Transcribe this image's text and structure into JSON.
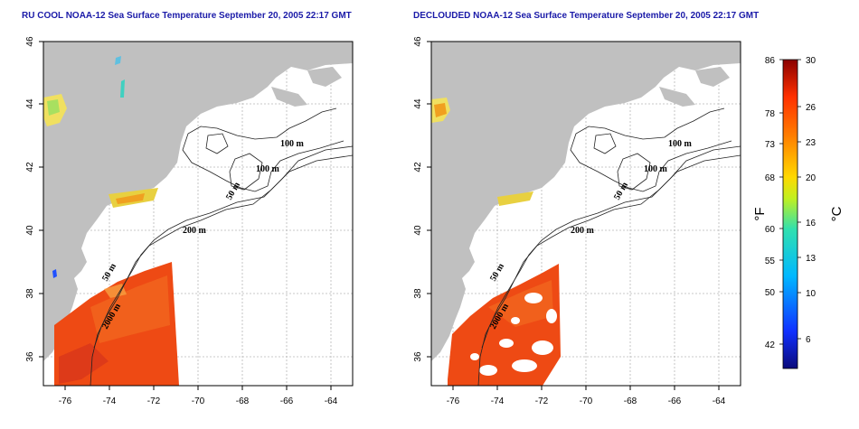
{
  "titles": {
    "left": "RU COOL NOAA-12 Sea Surface Temperature September 20, 2005 22:17 GMT",
    "right": "DECLOUDED NOAA-12 Sea Surface Temperature September 20, 2005 22:17 GMT"
  },
  "axes": {
    "x_ticks": [
      "-76",
      "-74",
      "-72",
      "-70",
      "-68",
      "-66",
      "-64"
    ],
    "y_ticks": [
      "46",
      "44",
      "42",
      "40",
      "38",
      "36"
    ]
  },
  "contour_labels": {
    "left": [
      "100 m",
      "100 m",
      "50 m",
      "200 m",
      "50 m",
      "2000 m"
    ],
    "right": [
      "100 m",
      "100 m",
      "50 m",
      "200 m",
      "50 m",
      "2000 m"
    ]
  },
  "colorbar": {
    "fahrenheit_ticks": [
      "86",
      "78",
      "73",
      "68",
      "60",
      "55",
      "50",
      "42"
    ],
    "celsius_ticks": [
      "30",
      "26",
      "23",
      "20",
      "16",
      "13",
      "10",
      "6"
    ],
    "unit_f": "°F",
    "unit_c": "°C"
  },
  "colors": {
    "title": "#1a1aa8",
    "land": "#c0c0c0",
    "sst_warm": "#ee4a14",
    "grid": "#b8b8b8"
  }
}
